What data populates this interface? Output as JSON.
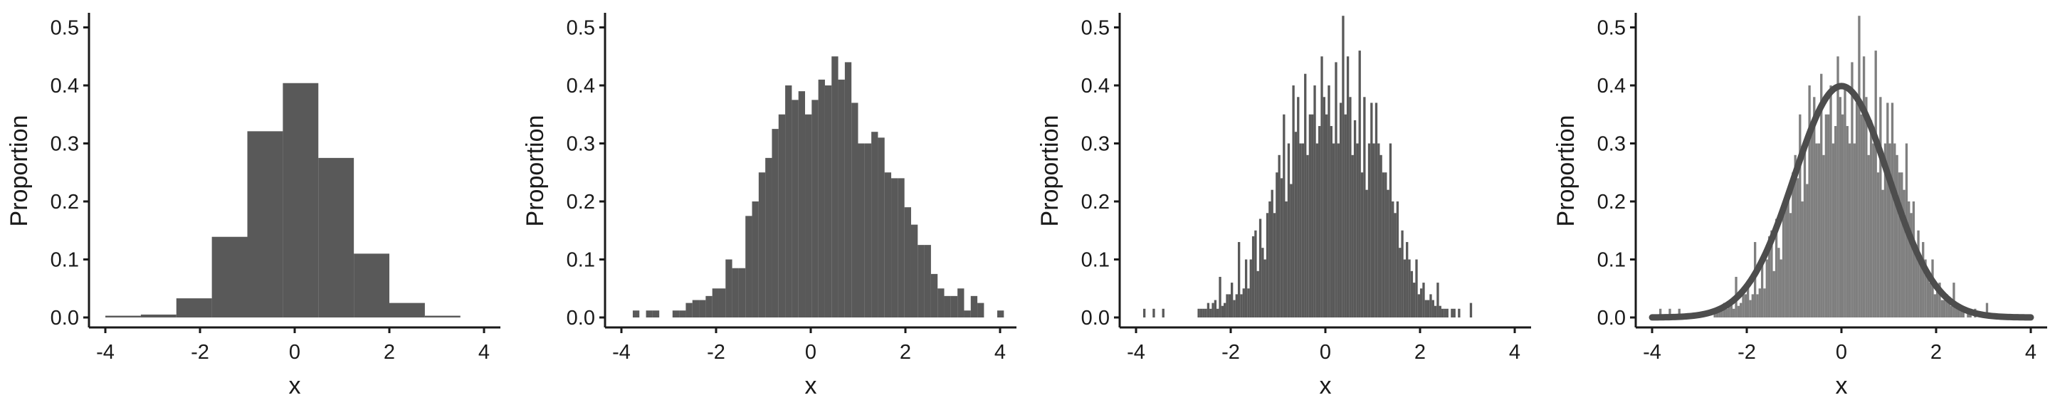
{
  "chart_data": [
    {
      "type": "histogram",
      "xlabel": "x",
      "ylabel": "Proportion",
      "xlim": [
        -4,
        4
      ],
      "ylim": [
        0,
        0.52
      ],
      "xticks": [
        "-4",
        "-2",
        "0",
        "2",
        "4"
      ],
      "yticks": [
        "0.0",
        "0.1",
        "0.2",
        "0.3",
        "0.4",
        "0.5"
      ],
      "grid": false,
      "bar_color": "#595959",
      "bin_edges": [
        -4.0,
        -3.25,
        -2.5,
        -1.75,
        -1.0,
        -0.25,
        0.5,
        1.25,
        2.0,
        2.75,
        3.5
      ],
      "values": [
        0.003,
        0.005,
        0.033,
        0.139,
        0.321,
        0.404,
        0.275,
        0.11,
        0.025,
        0.003
      ]
    },
    {
      "type": "histogram",
      "xlabel": "x",
      "ylabel": "Proportion",
      "xlim": [
        -4,
        4
      ],
      "ylim": [
        0,
        0.52
      ],
      "xticks": [
        "-4",
        "-2",
        "0",
        "2",
        "4"
      ],
      "yticks": [
        "0.0",
        "0.1",
        "0.2",
        "0.3",
        "0.4",
        "0.5"
      ],
      "grid": false,
      "bar_color": "#595959",
      "bin_start": -3.9,
      "bin_width": 0.14,
      "values": [
        0,
        0.012,
        0,
        0.012,
        0.012,
        0,
        0,
        0.012,
        0.012,
        0.025,
        0.03,
        0.03,
        0.037,
        0.05,
        0.05,
        0.1,
        0.085,
        0.085,
        0.175,
        0.2,
        0.25,
        0.275,
        0.325,
        0.35,
        0.4,
        0.375,
        0.39,
        0.35,
        0.375,
        0.41,
        0.4,
        0.45,
        0.41,
        0.44,
        0.37,
        0.3,
        0.3,
        0.32,
        0.31,
        0.25,
        0.24,
        0.24,
        0.19,
        0.16,
        0.125,
        0.125,
        0.075,
        0.05,
        0.037,
        0.037,
        0.05,
        0.012,
        0.037,
        0.025,
        0,
        0,
        0.012
      ]
    },
    {
      "type": "histogram",
      "xlabel": "x",
      "ylabel": "Proportion",
      "xlim": [
        -4,
        4
      ],
      "ylim": [
        0,
        0.52
      ],
      "xticks": [
        "-4",
        "-2",
        "0",
        "2",
        "4"
      ],
      "yticks": [
        "0.0",
        "0.1",
        "0.2",
        "0.3",
        "0.4",
        "0.5"
      ],
      "grid": false,
      "bar_color": "#595959",
      "bin_start": -3.85,
      "bin_width": 0.05,
      "values": [
        0.015,
        0,
        0,
        0,
        0.015,
        0,
        0,
        0,
        0.015,
        0,
        0,
        0,
        0,
        0,
        0,
        0,
        0,
        0,
        0,
        0,
        0,
        0,
        0,
        0.015,
        0.015,
        0.015,
        0.015,
        0.025,
        0.015,
        0.025,
        0.03,
        0.015,
        0.07,
        0.02,
        0.025,
        0.04,
        0.04,
        0.06,
        0.03,
        0.04,
        0.13,
        0.04,
        0.05,
        0.1,
        0.05,
        0.1,
        0.14,
        0.15,
        0.08,
        0.17,
        0.12,
        0.1,
        0.18,
        0.2,
        0.22,
        0.18,
        0.25,
        0.28,
        0.24,
        0.35,
        0.2,
        0.3,
        0.23,
        0.4,
        0.32,
        0.38,
        0.3,
        0.3,
        0.42,
        0.28,
        0.35,
        0.35,
        0.4,
        0.3,
        0.33,
        0.45,
        0.38,
        0.35,
        0.4,
        0.33,
        0.3,
        0.44,
        0.3,
        0.37,
        0.52,
        0.35,
        0.45,
        0.38,
        0.28,
        0.34,
        0.3,
        0.46,
        0.25,
        0.38,
        0.22,
        0.3,
        0.37,
        0.3,
        0.37,
        0.3,
        0.28,
        0.25,
        0.25,
        0.22,
        0.3,
        0.2,
        0.18,
        0.2,
        0.12,
        0.15,
        0.1,
        0.13,
        0.1,
        0.08,
        0.06,
        0.1,
        0.04,
        0.05,
        0.06,
        0.03,
        0.03,
        0.04,
        0.03,
        0.02,
        0.06,
        0.02,
        0.015,
        0.015,
        0.015,
        0,
        0.015,
        0.015,
        0,
        0.015,
        0,
        0,
        0,
        0,
        0.025
      ]
    },
    {
      "type": "histogram",
      "xlabel": "x",
      "ylabel": "Proportion",
      "xlim": [
        -4,
        4
      ],
      "ylim": [
        0,
        0.52
      ],
      "xticks": [
        "-4",
        "-2",
        "0",
        "2",
        "4"
      ],
      "yticks": [
        "0.0",
        "0.1",
        "0.2",
        "0.3",
        "0.4",
        "0.5"
      ],
      "grid": false,
      "bar_color": "#7f7f7f",
      "curve_color": "#4d4d4d",
      "curve": "normal density (mean 0, sd 1)",
      "bin_start": -3.85,
      "bin_width": 0.05,
      "values": [
        0.015,
        0,
        0,
        0,
        0.015,
        0,
        0,
        0,
        0.015,
        0,
        0,
        0,
        0,
        0,
        0,
        0,
        0,
        0,
        0,
        0,
        0,
        0,
        0,
        0.015,
        0.015,
        0.015,
        0.015,
        0.025,
        0.015,
        0.025,
        0.03,
        0.015,
        0.07,
        0.02,
        0.025,
        0.04,
        0.04,
        0.06,
        0.03,
        0.04,
        0.13,
        0.04,
        0.05,
        0.1,
        0.05,
        0.1,
        0.14,
        0.15,
        0.08,
        0.17,
        0.12,
        0.1,
        0.18,
        0.2,
        0.22,
        0.18,
        0.25,
        0.28,
        0.24,
        0.35,
        0.2,
        0.3,
        0.23,
        0.4,
        0.32,
        0.38,
        0.3,
        0.3,
        0.42,
        0.28,
        0.35,
        0.35,
        0.4,
        0.3,
        0.33,
        0.45,
        0.38,
        0.35,
        0.4,
        0.33,
        0.3,
        0.44,
        0.3,
        0.37,
        0.52,
        0.35,
        0.45,
        0.38,
        0.28,
        0.34,
        0.3,
        0.46,
        0.25,
        0.38,
        0.22,
        0.3,
        0.37,
        0.3,
        0.37,
        0.3,
        0.28,
        0.25,
        0.25,
        0.22,
        0.3,
        0.2,
        0.18,
        0.2,
        0.12,
        0.15,
        0.1,
        0.13,
        0.1,
        0.08,
        0.06,
        0.1,
        0.04,
        0.05,
        0.06,
        0.03,
        0.03,
        0.04,
        0.03,
        0.02,
        0.06,
        0.02,
        0.015,
        0.015,
        0.015,
        0,
        0.015,
        0.015,
        0,
        0.015,
        0,
        0,
        0,
        0,
        0.025
      ]
    }
  ]
}
